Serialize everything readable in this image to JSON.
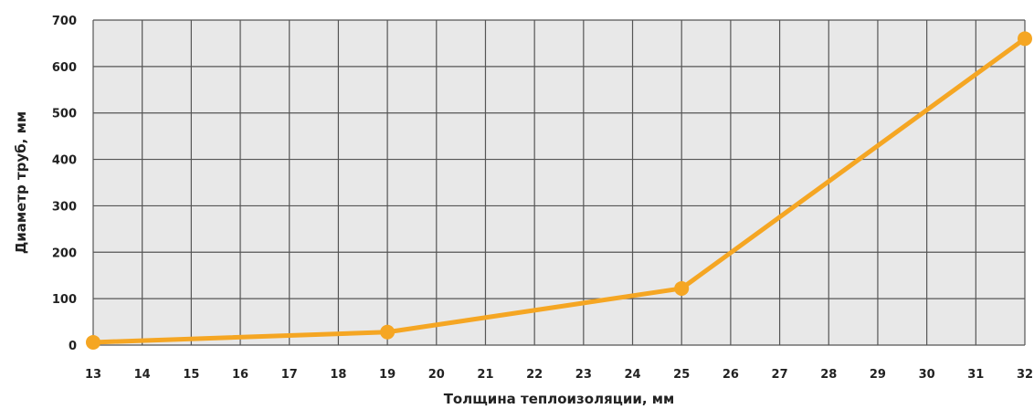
{
  "chart_data": {
    "type": "line",
    "xlabel": "Толщина теплоизоляции, мм",
    "ylabel": "Диаметр труб, мм",
    "x_ticks": [
      "13",
      "14",
      "15",
      "16",
      "17",
      "18",
      "19",
      "20",
      "21",
      "22",
      "23",
      "24",
      "25",
      "26",
      "27",
      "28",
      "29",
      "30",
      "31",
      "32"
    ],
    "y_ticks": [
      "0",
      "100",
      "200",
      "300",
      "400",
      "500",
      "600",
      "700"
    ],
    "xlim": [
      13,
      32
    ],
    "ylim": [
      0,
      700
    ],
    "grid": true,
    "series": [
      {
        "points": [
          {
            "x": 13,
            "y": 6
          },
          {
            "x": 19,
            "y": 28
          },
          {
            "x": 25,
            "y": 122
          },
          {
            "x": 32,
            "y": 660
          }
        ]
      }
    ],
    "colors": {
      "line": "#f5a623",
      "plot_background": "#e8e8e8",
      "grid": "#555555"
    }
  }
}
